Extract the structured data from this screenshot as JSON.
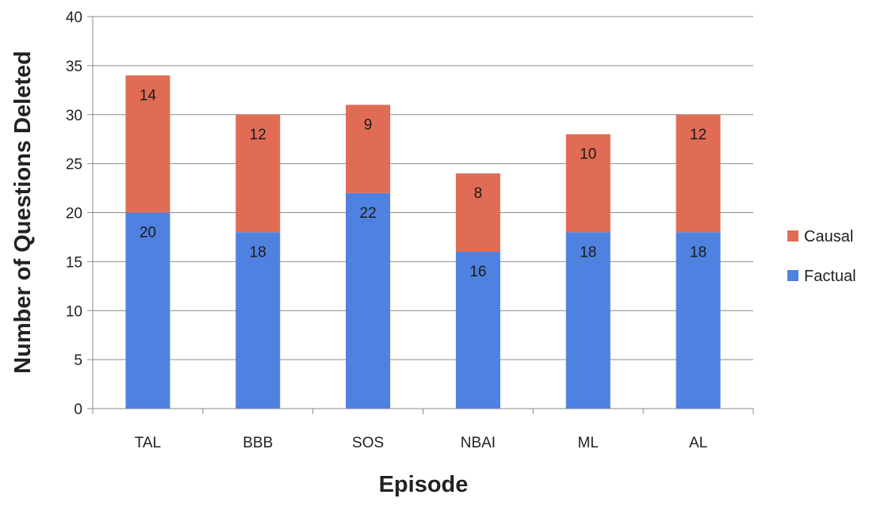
{
  "chart_data": {
    "type": "bar",
    "stacked": true,
    "title": "",
    "xlabel": "Episode",
    "ylabel": "Number of Questions Deleted",
    "categories": [
      "TAL",
      "BBB",
      "SOS",
      "NBAI",
      "ML",
      "AL"
    ],
    "series": [
      {
        "name": "Factual",
        "color": "#4f81e0",
        "values": [
          20,
          18,
          22,
          16,
          18,
          18
        ]
      },
      {
        "name": "Causal",
        "color": "#e06c55",
        "values": [
          14,
          12,
          9,
          8,
          10,
          12
        ]
      }
    ],
    "ylim": [
      0,
      40
    ],
    "yticks": [
      "0",
      "5",
      "10",
      "15",
      "20",
      "25",
      "30",
      "35",
      "40"
    ],
    "grid": true,
    "legend": {
      "position": "right",
      "order": [
        "Causal",
        "Factual"
      ]
    },
    "data_labels": true
  }
}
